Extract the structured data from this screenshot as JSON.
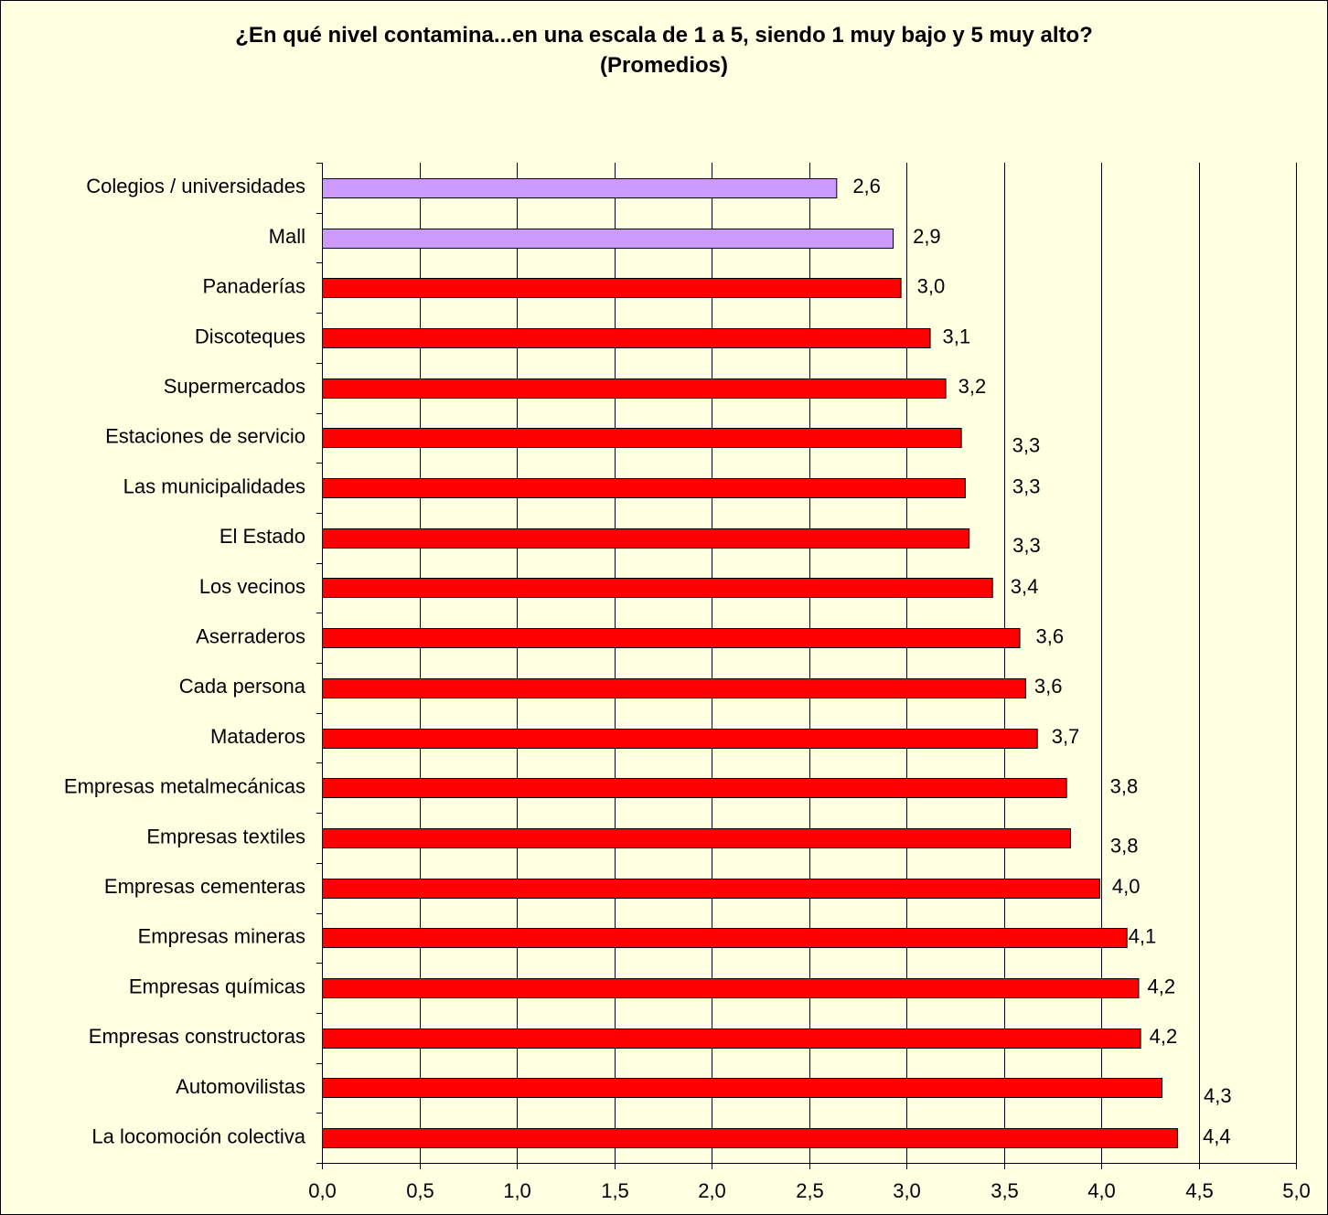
{
  "chart_data": {
    "type": "bar",
    "orientation": "horizontal",
    "title_line1": "¿En qué nivel contamina...en una escala de 1 a 5, siendo 1 muy bajo y 5 muy alto?",
    "title_line2": "(Promedios)",
    "categories": [
      "Colegios / universidades",
      "Mall",
      "Panaderías",
      "Discoteques",
      "Supermercados",
      "Estaciones de servicio",
      "Las municipalidades",
      "El Estado",
      "Los vecinos",
      "Aserraderos",
      "Cada persona",
      "Mataderos",
      "Empresas metalmecánicas",
      "Empresas textiles",
      "Empresas cementeras",
      "Empresas mineras",
      "Empresas químicas",
      "Empresas constructoras",
      "Automovilistas",
      "La locomoción colectiva"
    ],
    "values": [
      2.64,
      2.93,
      2.97,
      3.12,
      3.2,
      3.28,
      3.3,
      3.32,
      3.44,
      3.58,
      3.61,
      3.67,
      3.82,
      3.84,
      3.99,
      4.13,
      4.19,
      4.2,
      4.31,
      4.39
    ],
    "value_labels": [
      "2,6",
      "2,9",
      "3,0",
      "3,1",
      "3,2",
      "3,3",
      "3,3",
      "3,3",
      "3,4",
      "3,6",
      "3,6",
      "3,7",
      "3,8",
      "3,8",
      "4,0",
      "4,1",
      "4,2",
      "4,2",
      "4,3",
      "4,4"
    ],
    "highlighted": [
      true,
      true,
      false,
      false,
      false,
      false,
      false,
      false,
      false,
      false,
      false,
      false,
      false,
      false,
      false,
      false,
      false,
      false,
      false,
      false
    ],
    "xlim": [
      0,
      5
    ],
    "x_ticks": [
      0,
      0.5,
      1,
      1.5,
      2,
      2.5,
      3,
      3.5,
      4,
      4.5,
      5
    ],
    "x_tick_labels": [
      "0,0",
      "0,5",
      "1,0",
      "1,5",
      "2,0",
      "2,5",
      "3,0",
      "3,5",
      "4,0",
      "4,5",
      "5,0"
    ],
    "vertical_gridlines": true,
    "bar_color": "#FF0000",
    "highlight_color": "#CC99FF",
    "background_color": "#FFFFE1"
  }
}
